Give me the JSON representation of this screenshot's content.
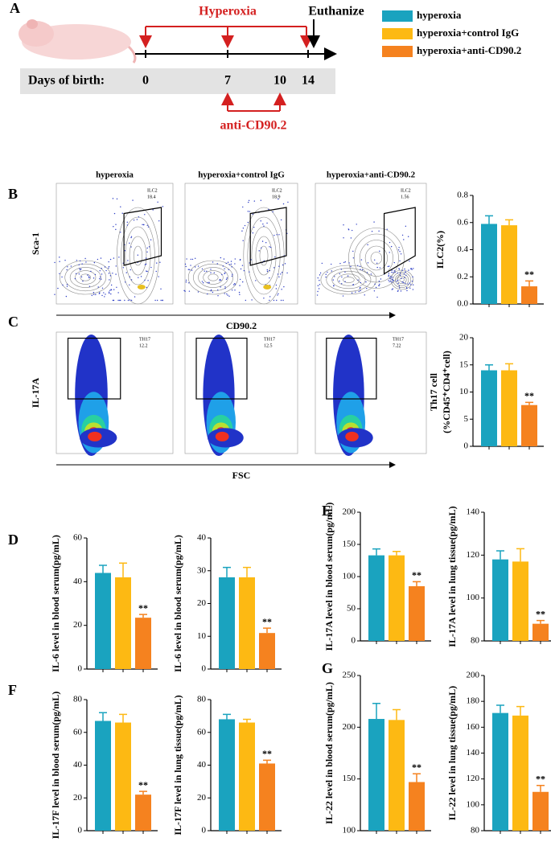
{
  "panels": [
    "A",
    "B",
    "C",
    "D",
    "E",
    "F",
    "G"
  ],
  "timeline": {
    "hyperoxia": "Hyperoxia",
    "euthanize": "Euthanize",
    "days_label": "Days of birth:",
    "days": [
      "0",
      "7",
      "10",
      "14"
    ],
    "treatment": "anti-CD90.2"
  },
  "legend": [
    {
      "name": "hyperoxia",
      "color": "#1aa3bf"
    },
    {
      "name": "hyperoxia+control IgG",
      "color": "#fdb913"
    },
    {
      "name": "hyperoxia+anti-CD90.2",
      "color": "#f5821f"
    }
  ],
  "flow": {
    "B": {
      "titles": [
        "hyperoxia",
        "hyperoxia+control  IgG",
        "hyperoxia+anti-CD90.2"
      ],
      "ylabel": "Sca-1",
      "xlabel": "CD90.2",
      "gate_name": "ILC2",
      "gate_values": [
        "18.4",
        "18.9",
        "1.56"
      ]
    },
    "C": {
      "ylabel": "IL-17A",
      "xlabel": "FSC",
      "gate_name": "TH17",
      "gate_values": [
        "12.2",
        "12.5",
        "7.22"
      ]
    }
  },
  "chart_data": [
    {
      "type": "bar",
      "ylabel": "ILC2(%)",
      "values": [
        0.59,
        0.58,
        0.13
      ],
      "errors": [
        0.06,
        0.04,
        0.04
      ],
      "annotation": "**",
      "ylim": [
        0,
        0.8
      ],
      "yticks": [
        {
          "value": 0,
          "label": "0.0"
        },
        0.2,
        0.4,
        0.6,
        0.8
      ]
    },
    {
      "type": "bar",
      "ylabel": [
        "Th17 cell",
        "(%CD45⁺CD4⁺cell)"
      ],
      "values": [
        14,
        14,
        7.6
      ],
      "errors": [
        1,
        1.2,
        0.5
      ],
      "annotation": "**",
      "ylim": [
        0,
        20
      ],
      "yticks": [
        0,
        5,
        10,
        15,
        20
      ]
    },
    {
      "type": "bar",
      "ylabel": "IL-6 level  in blood serum(pg/mL)",
      "values": [
        44,
        42,
        23.5
      ],
      "errors": [
        3.5,
        6.5,
        1.5
      ],
      "annotation": "**",
      "ylim": [
        0,
        60
      ],
      "yticks": [
        0,
        20,
        40,
        60
      ]
    },
    {
      "type": "bar",
      "ylabel": "IL-6 level  in blood serum(pg/mL)",
      "values": [
        28,
        28,
        11
      ],
      "errors": [
        3,
        3,
        1.5
      ],
      "annotation": "**",
      "ylim": [
        0,
        40
      ],
      "yticks": [
        0,
        10,
        20,
        30,
        40
      ]
    },
    {
      "type": "bar",
      "ylabel": "IL-17A level  in blood serum(pg/mL)",
      "values": [
        133,
        133,
        85
      ],
      "errors": [
        10,
        6,
        7
      ],
      "annotation": "**",
      "ylim": [
        0,
        200
      ],
      "yticks": [
        0,
        50,
        100,
        150,
        200
      ]
    },
    {
      "type": "bar",
      "ylabel": "IL-17A level  in lung tissue(pg/mL)",
      "values": [
        118,
        117,
        88
      ],
      "errors": [
        4,
        6,
        1.5
      ],
      "annotation": "**",
      "ylim": [
        80,
        140
      ],
      "yticks": [
        80,
        100,
        120,
        140
      ]
    },
    {
      "type": "bar",
      "ylabel": "IL-17F level  in blood serum(pg/mL)",
      "values": [
        67,
        66,
        22
      ],
      "errors": [
        5,
        5,
        2
      ],
      "annotation": "**",
      "ylim": [
        0,
        80
      ],
      "yticks": [
        0,
        20,
        40,
        60,
        80
      ]
    },
    {
      "type": "bar",
      "ylabel": "IL-17F level  in lung tissue(pg/mL)",
      "values": [
        68,
        66,
        41
      ],
      "errors": [
        3,
        2,
        2
      ],
      "annotation": "**",
      "ylim": [
        0,
        80
      ],
      "yticks": [
        0,
        20,
        40,
        60,
        80
      ]
    },
    {
      "type": "bar",
      "ylabel": "IL-22 level  in blood serum(pg/mL)",
      "values": [
        208,
        207,
        147
      ],
      "errors": [
        15,
        10,
        8
      ],
      "annotation": "**",
      "ylim": [
        100,
        250
      ],
      "yticks": [
        100,
        150,
        200,
        250
      ]
    },
    {
      "type": "bar",
      "ylabel": "IL-22 level  in lung tissue(pg/mL)",
      "values": [
        171,
        169,
        110
      ],
      "errors": [
        6,
        7,
        5
      ],
      "annotation": "**",
      "ylim": [
        80,
        200
      ],
      "yticks": [
        80,
        100,
        120,
        140,
        160,
        180,
        200
      ]
    }
  ]
}
